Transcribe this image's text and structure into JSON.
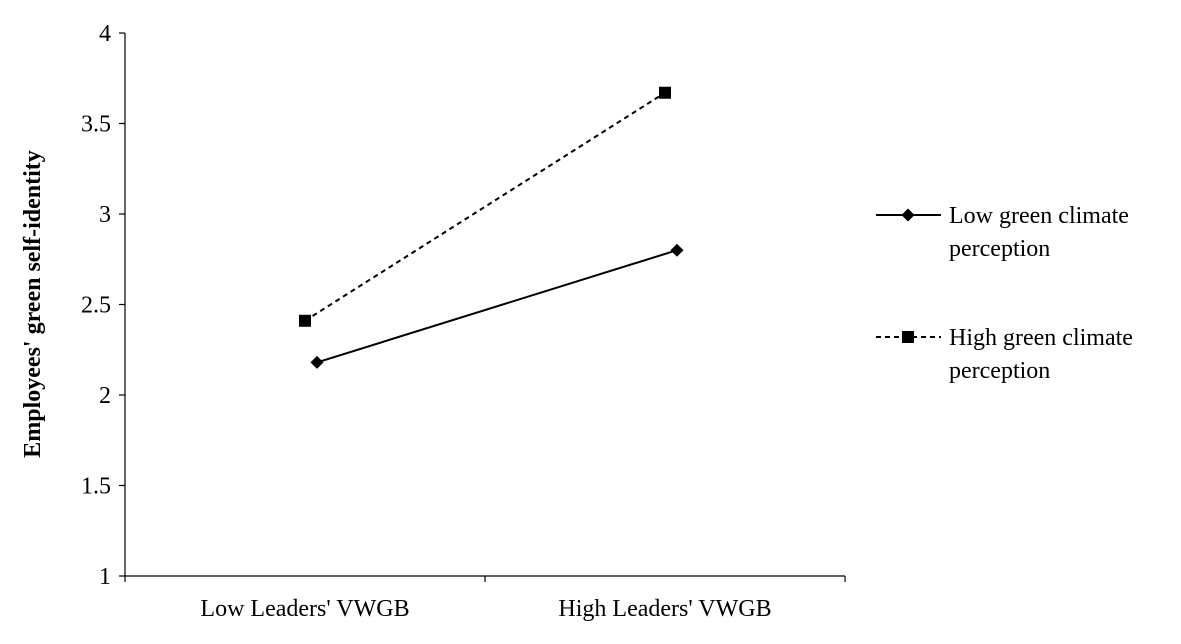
{
  "chart_data": {
    "type": "line",
    "title": "",
    "xlabel": "",
    "ylabel": "Employees' green self-identity",
    "categories": [
      "Low Leaders' VWGB",
      "High Leaders' VWGB"
    ],
    "ylim": [
      1,
      4
    ],
    "yticks": [
      "1",
      "1.5",
      "2",
      "2.5",
      "3",
      "3.5",
      "4"
    ],
    "grid": false,
    "legend_position": "right",
    "series": [
      {
        "name_lines": [
          "Low green climate",
          "perception"
        ],
        "values": [
          2.18,
          2.8
        ],
        "line_style": "solid",
        "marker": "diamond",
        "color": "#000000"
      },
      {
        "name_lines": [
          "High green climate",
          "perception"
        ],
        "values": [
          2.41,
          3.67
        ],
        "line_style": "dashed",
        "marker": "square",
        "color": "#000000"
      }
    ]
  }
}
